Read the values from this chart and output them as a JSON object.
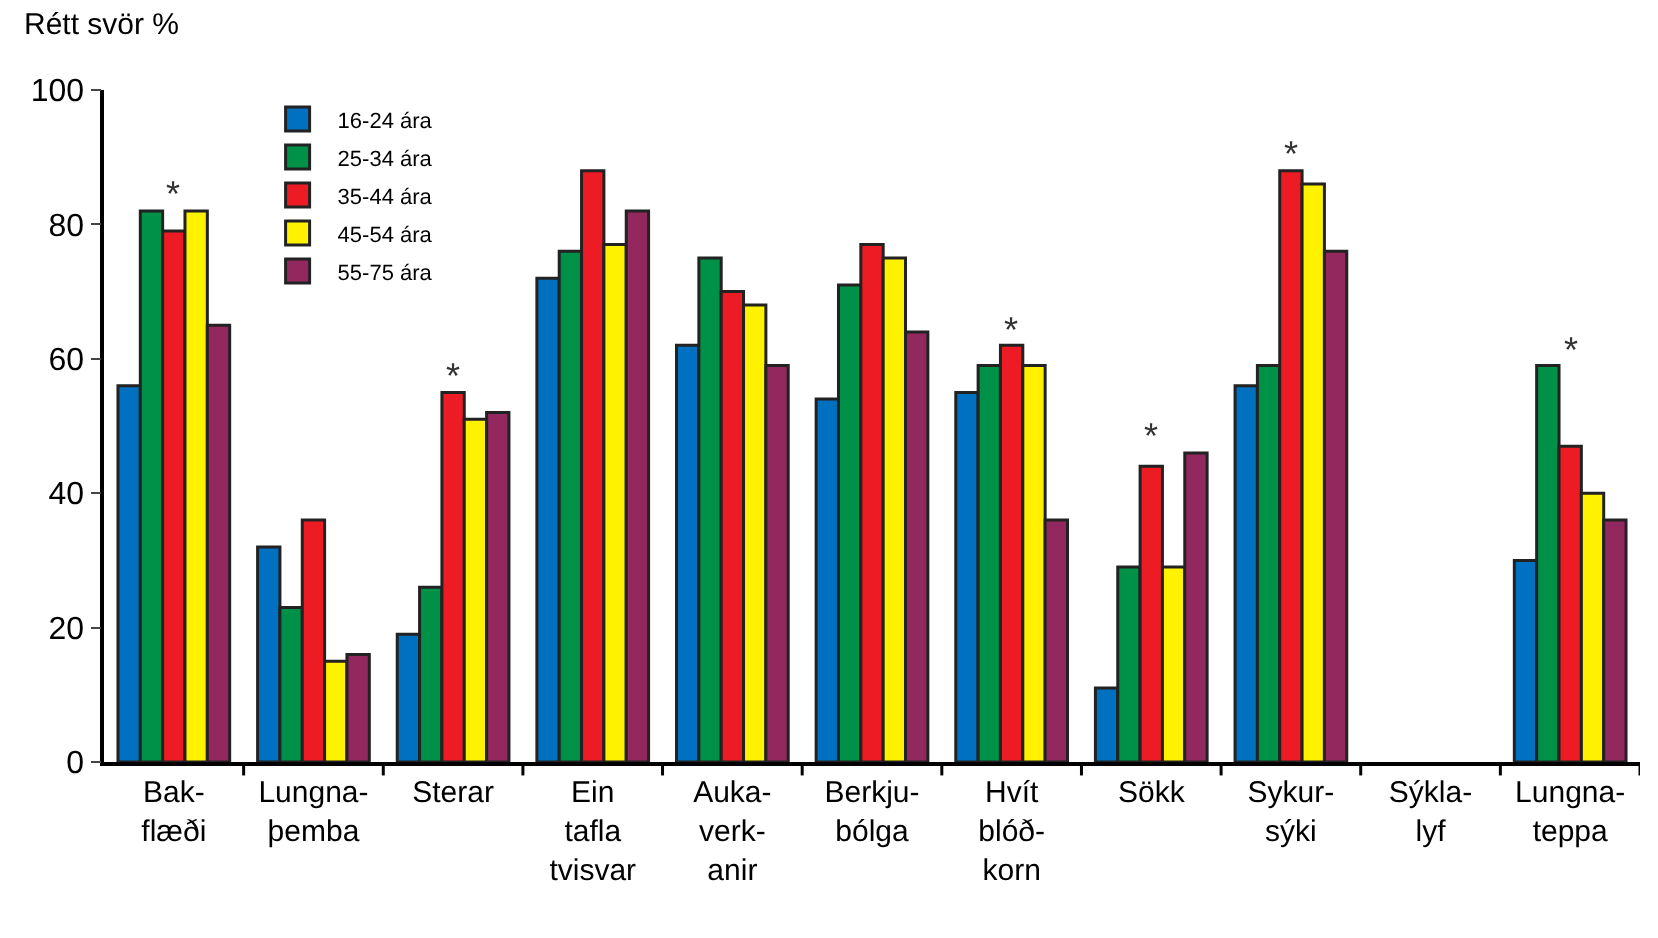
{
  "chart_data": {
    "type": "bar",
    "ylabel": "Rétt svör %",
    "categories": [
      "Bak-\nflæði",
      "Lungna-\nþemba",
      "Sterar",
      "Ein\ntafla\ntvisvar",
      "Auka-\nverk-\nanir",
      "Berkju-\nbólga",
      "Hvít\nblóð-\nkorn",
      "Sökk",
      "Sykur-\nsýki",
      "Sýkla-\nlyf",
      "Lungna-\nteppa"
    ],
    "series": [
      {
        "name": "16-24 ára",
        "color": "#0070c0",
        "values": [
          56,
          32,
          19,
          72,
          62,
          54,
          55,
          11,
          56,
          null,
          30
        ]
      },
      {
        "name": "25-34 ára",
        "color": "#009148",
        "values": [
          82,
          23,
          26,
          76,
          75,
          71,
          59,
          29,
          59,
          null,
          59
        ]
      },
      {
        "name": "35-44 ára",
        "color": "#ed1c24",
        "values": [
          79,
          36,
          55,
          88,
          70,
          77,
          62,
          44,
          88,
          null,
          47
        ]
      },
      {
        "name": "45-54 ára",
        "color": "#fff200",
        "values": [
          82,
          15,
          51,
          77,
          68,
          75,
          59,
          29,
          86,
          null,
          40
        ]
      },
      {
        "name": "55-75 ára",
        "color": "#93285e",
        "values": [
          65,
          16,
          52,
          82,
          59,
          64,
          36,
          46,
          76,
          null,
          36
        ]
      }
    ],
    "ylim": [
      0,
      100
    ],
    "yticks": [
      0,
      20,
      40,
      60,
      80,
      100
    ],
    "grid": false,
    "legend": "top left",
    "annotations": [
      {
        "text": "*",
        "x": "Bak-\nflæði",
        "y": 79
      },
      {
        "text": "*",
        "x": "Sterar",
        "y": 55
      },
      {
        "text": "*",
        "x": "Hvít\nblóð-\nkorn",
        "y": 62
      },
      {
        "text": "*",
        "x": "Sökk",
        "y": 44
      },
      {
        "text": "*",
        "x": "Sykur-\nsýki",
        "y": 88
      },
      {
        "text": "*",
        "x": "Lungna-\nteppa",
        "y": 47
      }
    ]
  }
}
